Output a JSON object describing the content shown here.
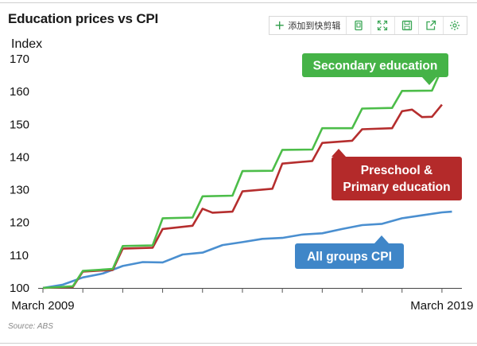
{
  "header": {
    "title": "Education prices vs CPI",
    "clip_label": "添加到快剪辑"
  },
  "toolbar_icons": [
    "copy-icon",
    "fullscreen-icon",
    "save-icon",
    "share-icon",
    "settings-icon"
  ],
  "source": "Source: ABS",
  "chart_data": {
    "type": "line",
    "ylabel": "Index",
    "ylim": [
      100,
      170
    ],
    "yticks": [
      100,
      110,
      120,
      130,
      140,
      150,
      160,
      170
    ],
    "xlim": [
      2009.0,
      2019.5
    ],
    "xtick_labels": [
      {
        "x": 2009.0,
        "label": "March 2009"
      },
      {
        "x": 2019.0,
        "label": "March 2019"
      }
    ],
    "grid": false,
    "series": [
      {
        "name": "Secondary education",
        "color": "#4cbd49",
        "label_color": "#45b347",
        "points": [
          [
            2009.0,
            100
          ],
          [
            2009.75,
            100.5
          ],
          [
            2010.0,
            105.2
          ],
          [
            2010.75,
            105.8
          ],
          [
            2011.0,
            112.8
          ],
          [
            2011.75,
            113
          ],
          [
            2012.0,
            121.3
          ],
          [
            2012.75,
            121.5
          ],
          [
            2013.0,
            128
          ],
          [
            2013.75,
            128.2
          ],
          [
            2014.0,
            135.7
          ],
          [
            2014.75,
            135.8
          ],
          [
            2015.0,
            142.2
          ],
          [
            2015.75,
            142.3
          ],
          [
            2016.0,
            148.8
          ],
          [
            2016.75,
            148.8
          ],
          [
            2017.0,
            154.8
          ],
          [
            2017.75,
            155
          ],
          [
            2018.0,
            160.2
          ],
          [
            2018.75,
            160.3
          ],
          [
            2019.0,
            167
          ]
        ]
      },
      {
        "name": "Preschool & Primary education",
        "color": "#b52e2e",
        "label_color": "#b42a2a",
        "points": [
          [
            2009.0,
            100
          ],
          [
            2009.75,
            100.3
          ],
          [
            2010.0,
            105
          ],
          [
            2010.75,
            105.5
          ],
          [
            2011.0,
            112
          ],
          [
            2011.75,
            112.3
          ],
          [
            2012.0,
            118
          ],
          [
            2012.75,
            119
          ],
          [
            2013.0,
            124.2
          ],
          [
            2013.25,
            123
          ],
          [
            2013.75,
            123.3
          ],
          [
            2014.0,
            129.5
          ],
          [
            2014.75,
            130.3
          ],
          [
            2015.0,
            138
          ],
          [
            2015.75,
            138.8
          ],
          [
            2016.0,
            144.3
          ],
          [
            2016.75,
            145
          ],
          [
            2017.0,
            148.5
          ],
          [
            2017.75,
            148.8
          ],
          [
            2018.0,
            154
          ],
          [
            2018.25,
            154.5
          ],
          [
            2018.5,
            152.2
          ],
          [
            2018.75,
            152.3
          ],
          [
            2019.0,
            156
          ]
        ]
      },
      {
        "name": "All groups CPI",
        "color": "#4a8fd0",
        "label_color": "#3f86c8",
        "points": [
          [
            2009.0,
            100
          ],
          [
            2009.5,
            101
          ],
          [
            2010.0,
            103.2
          ],
          [
            2010.5,
            104.4
          ],
          [
            2011.0,
            106.7
          ],
          [
            2011.5,
            107.9
          ],
          [
            2012.0,
            107.8
          ],
          [
            2012.5,
            110.2
          ],
          [
            2013.0,
            110.8
          ],
          [
            2013.5,
            113.1
          ],
          [
            2014.0,
            114
          ],
          [
            2014.5,
            115
          ],
          [
            2015.0,
            115.3
          ],
          [
            2015.5,
            116.3
          ],
          [
            2016.0,
            116.7
          ],
          [
            2016.5,
            118
          ],
          [
            2017.0,
            119.2
          ],
          [
            2017.5,
            119.6
          ],
          [
            2018.0,
            121.3
          ],
          [
            2018.5,
            122.2
          ],
          [
            2019.0,
            123.1
          ],
          [
            2019.25,
            123.3
          ]
        ]
      }
    ]
  }
}
